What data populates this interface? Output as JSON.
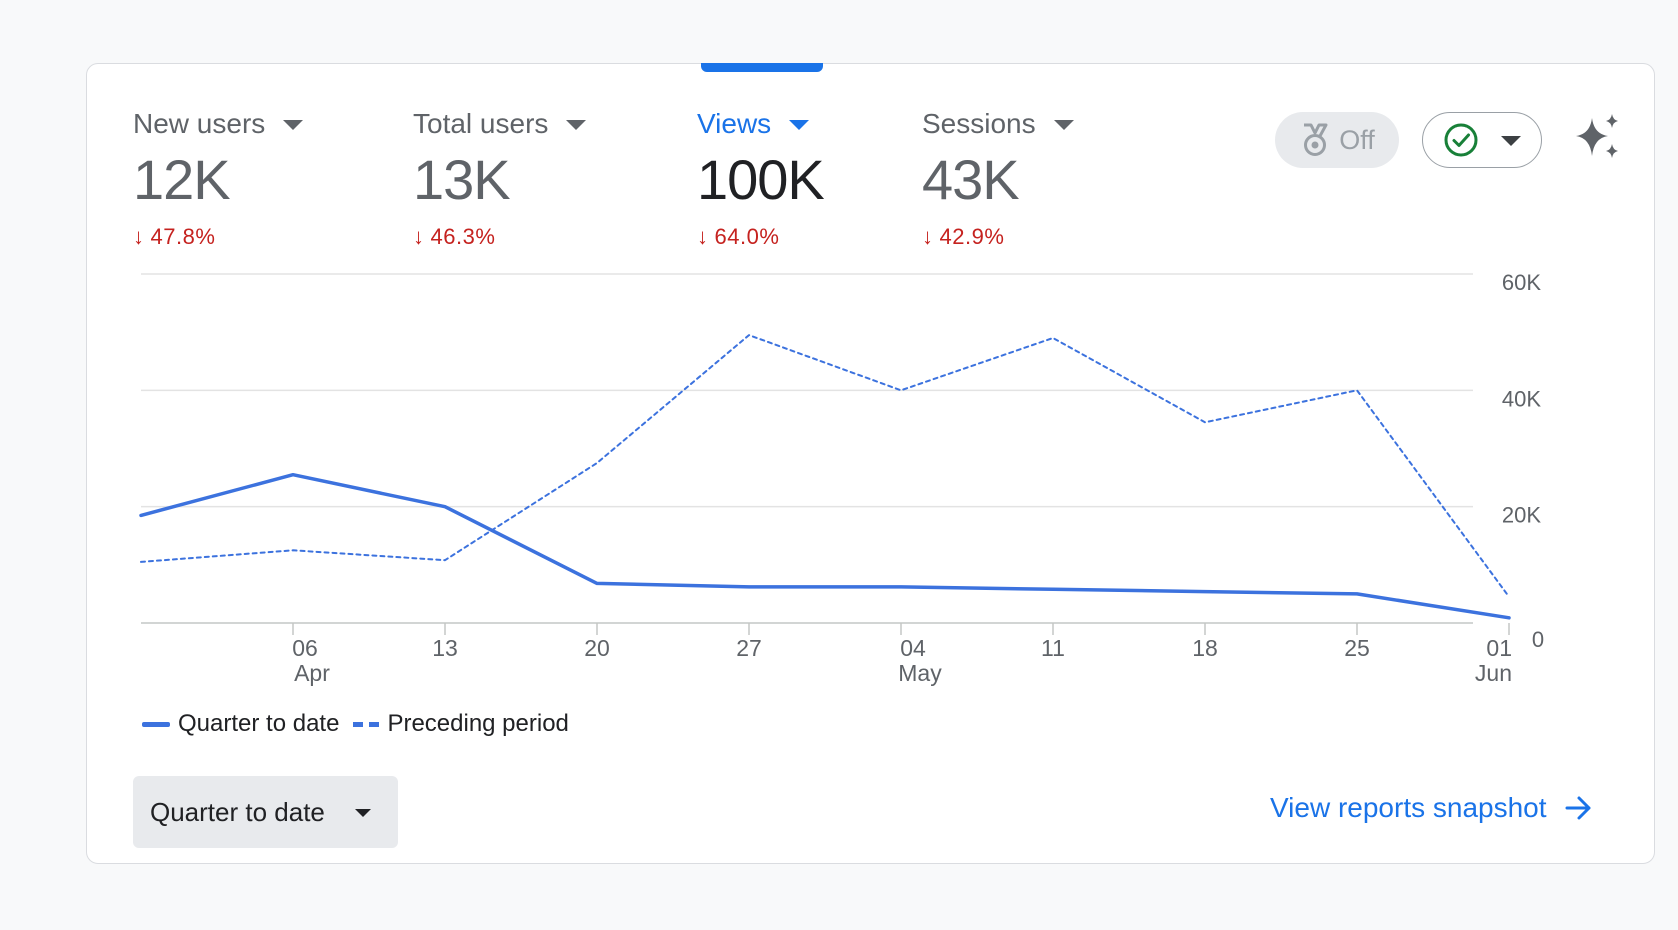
{
  "metrics": [
    {
      "label": "New users",
      "value": "12K",
      "change": "47.8%",
      "active": false
    },
    {
      "label": "Total users",
      "value": "13K",
      "change": "46.3%",
      "active": false
    },
    {
      "label": "Views",
      "value": "100K",
      "change": "64.0%",
      "active": true
    },
    {
      "label": "Sessions",
      "value": "43K",
      "change": "42.9%",
      "active": false
    }
  ],
  "controls": {
    "off_label": "Off",
    "off_icon": "medal-icon",
    "status_icon": "check-circle-icon",
    "ai_icon": "sparkle-icon"
  },
  "chart_data": {
    "type": "line",
    "x": [
      "2024-03-30",
      "2024-04-06",
      "2024-04-13",
      "2024-04-20",
      "2024-04-27",
      "2024-05-04",
      "2024-05-11",
      "2024-05-18",
      "2024-05-25",
      "2024-06-01"
    ],
    "x_tick_labels": [
      {
        "day": "06",
        "month": "Apr"
      },
      {
        "day": "13",
        "month": ""
      },
      {
        "day": "20",
        "month": ""
      },
      {
        "day": "27",
        "month": ""
      },
      {
        "day": "04",
        "month": "May"
      },
      {
        "day": "11",
        "month": ""
      },
      {
        "day": "18",
        "month": ""
      },
      {
        "day": "25",
        "month": ""
      },
      {
        "day": "01",
        "month": "Jun"
      }
    ],
    "y_ticks": [
      "0",
      "20K",
      "40K",
      "60K"
    ],
    "ylim": [
      0,
      60000
    ],
    "grid": true,
    "series": [
      {
        "name": "Quarter to date",
        "style": "solid",
        "color": "#3c72de",
        "values": [
          18500,
          25500,
          20000,
          6800,
          6200,
          6200,
          5800,
          5400,
          5000,
          900
        ]
      },
      {
        "name": "Preceding period",
        "style": "dashed",
        "color": "#3c72de",
        "values": [
          10500,
          12500,
          10800,
          27500,
          49500,
          40000,
          49000,
          34500,
          40000,
          4500
        ]
      }
    ]
  },
  "footer": {
    "date_range": "Quarter to date",
    "snapshot_link": "View reports snapshot"
  },
  "colors": {
    "accent": "#1a73e8",
    "negative": "#c5221f",
    "line": "#3c72de"
  }
}
